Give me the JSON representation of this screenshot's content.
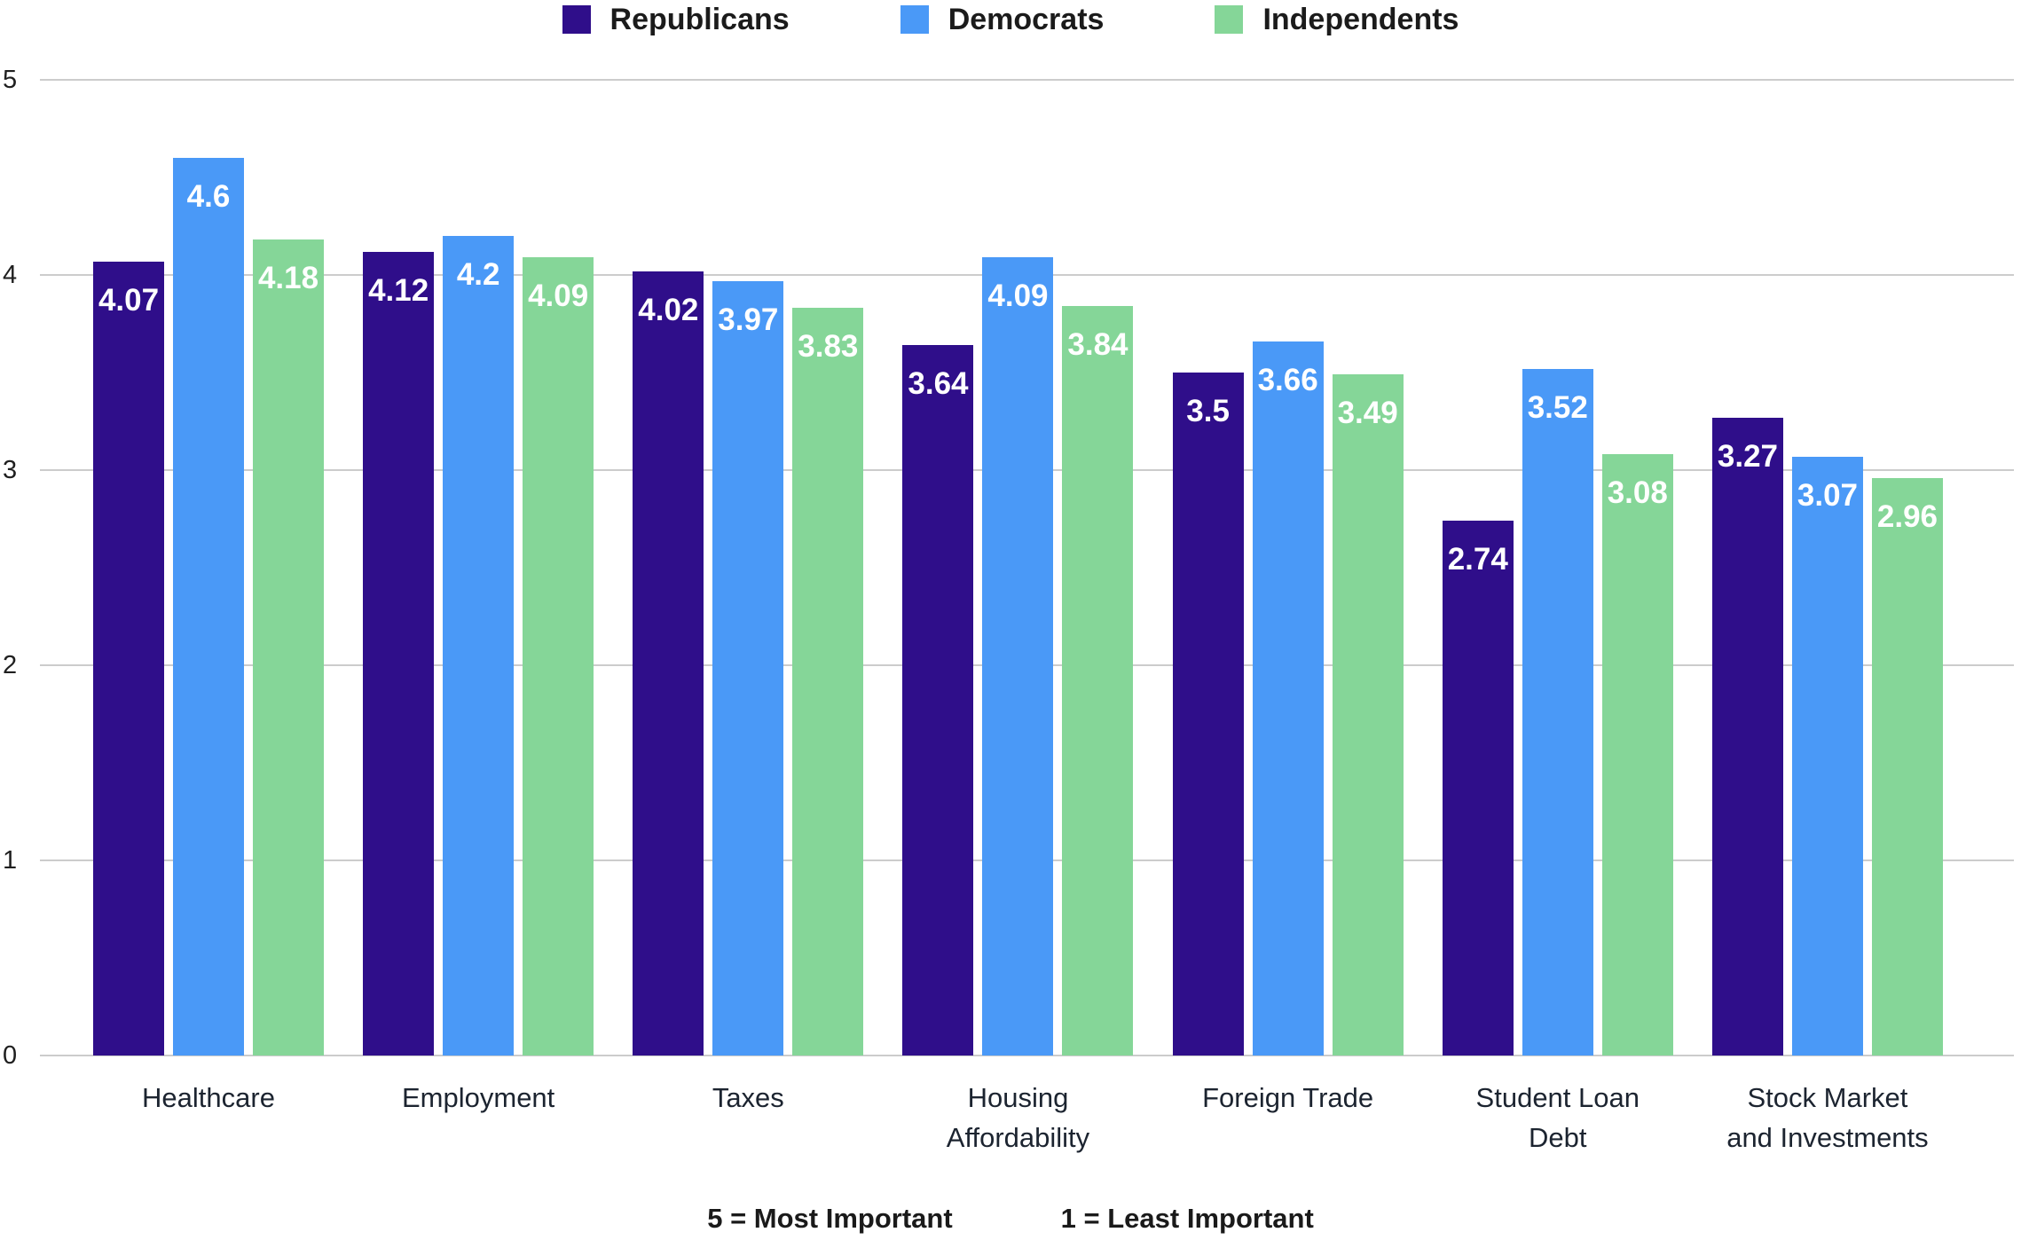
{
  "chart_data": {
    "type": "bar",
    "title": "",
    "categories": [
      "Healthcare",
      "Employment",
      "Taxes",
      "Housing\nAffordability",
      "Foreign Trade",
      "Student Loan\nDebt",
      "Stock Market\nand Investments"
    ],
    "series": [
      {
        "name": "Republicans",
        "color": "#2F0E8A",
        "values": [
          4.07,
          4.12,
          4.02,
          3.64,
          3.5,
          2.74,
          3.27
        ]
      },
      {
        "name": "Democrats",
        "color": "#4A99F7",
        "values": [
          4.6,
          4.2,
          3.97,
          4.09,
          3.66,
          3.52,
          3.07
        ]
      },
      {
        "name": "Independents",
        "color": "#85D698",
        "values": [
          4.18,
          4.09,
          3.83,
          3.84,
          3.49,
          3.08,
          2.96
        ]
      }
    ],
    "xlabel": "",
    "ylabel": "",
    "ylim": [
      0,
      5
    ],
    "yticks": [
      0,
      1,
      2,
      3,
      4,
      5
    ],
    "grid": true,
    "legend_position": "top",
    "value_labels_position": "inside-top",
    "value_label_color": "#ffffff",
    "gridline_color": "#cccccc"
  },
  "footnotes": {
    "most": "5 = Most Important",
    "least": "1 = Least Important"
  }
}
